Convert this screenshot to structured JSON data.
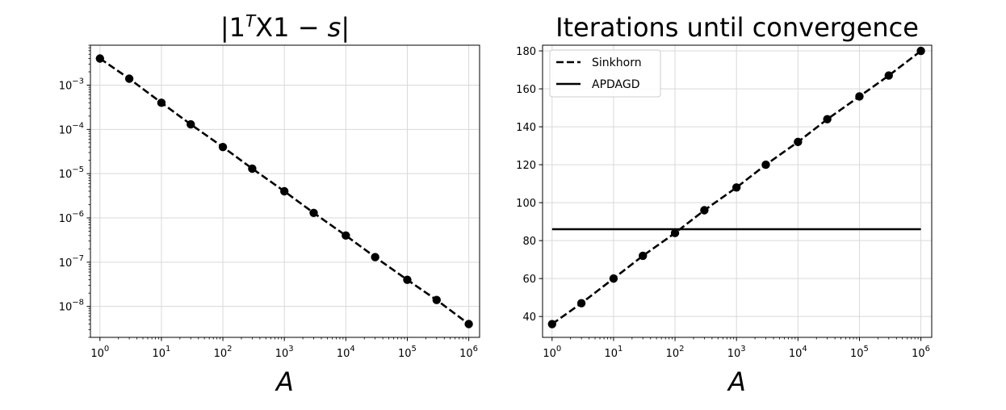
{
  "chart_data": [
    {
      "type": "line",
      "title_parts": [
        "|1",
        "T",
        "X1 − ",
        "s",
        "|"
      ],
      "xlabel": "A",
      "ylabel": "",
      "xscale": "log",
      "yscale": "log",
      "xlim": [
        0.7,
        1500000
      ],
      "ylim": [
        2e-09,
        0.008
      ],
      "grid": true,
      "x": [
        1,
        3,
        10,
        30,
        100,
        300,
        1000,
        3000,
        10000,
        30000,
        100000,
        300000,
        1000000
      ],
      "series": [
        {
          "style": "dashed",
          "marker": "circle",
          "values": [
            0.004,
            0.0014,
            0.0004,
            0.00013,
            4e-05,
            1.3e-05,
            4e-06,
            1.3e-06,
            4e-07,
            1.3e-07,
            4e-08,
            1.4e-08,
            4e-09
          ]
        }
      ],
      "xticks": [
        1,
        10,
        100,
        1000,
        10000,
        100000,
        1000000
      ],
      "xtick_labels": [
        [
          "10",
          "0"
        ],
        [
          "10",
          "1"
        ],
        [
          "10",
          "2"
        ],
        [
          "10",
          "3"
        ],
        [
          "10",
          "4"
        ],
        [
          "10",
          "5"
        ],
        [
          "10",
          "6"
        ]
      ],
      "yticks": [
        0.001,
        0.0001,
        1e-05,
        1e-06,
        1e-07,
        1e-08
      ],
      "ytick_labels": [
        [
          "10",
          "−3"
        ],
        [
          "10",
          "−4"
        ],
        [
          "10",
          "−5"
        ],
        [
          "10",
          "−6"
        ],
        [
          "10",
          "−7"
        ],
        [
          "10",
          "−8"
        ]
      ]
    },
    {
      "type": "line",
      "title": "Iterations until convergence",
      "xlabel": "A",
      "ylabel": "",
      "xscale": "log",
      "yscale": "linear",
      "xlim": [
        0.7,
        1500000
      ],
      "ylim": [
        29,
        183
      ],
      "grid": true,
      "legend": "top-left",
      "x": [
        1,
        3,
        10,
        30,
        100,
        300,
        1000,
        3000,
        10000,
        30000,
        100000,
        300000,
        1000000
      ],
      "series": [
        {
          "name": "Sinkhorn",
          "style": "dashed",
          "marker": "circle",
          "values": [
            36,
            47,
            60,
            72,
            84,
            96,
            108,
            120,
            132,
            144,
            156,
            167,
            180
          ]
        },
        {
          "name": "APDAGD",
          "style": "solid",
          "marker": "none",
          "x": [
            1,
            1000000
          ],
          "values": [
            86,
            86
          ]
        }
      ],
      "xticks": [
        1,
        10,
        100,
        1000,
        10000,
        100000,
        1000000
      ],
      "xtick_labels": [
        [
          "10",
          "0"
        ],
        [
          "10",
          "1"
        ],
        [
          "10",
          "2"
        ],
        [
          "10",
          "3"
        ],
        [
          "10",
          "4"
        ],
        [
          "10",
          "5"
        ],
        [
          "10",
          "6"
        ]
      ],
      "yticks": [
        40,
        60,
        80,
        100,
        120,
        140,
        160,
        180
      ],
      "ytick_labels": [
        [
          "40",
          ""
        ],
        [
          "60",
          ""
        ],
        [
          "80",
          ""
        ],
        [
          "100",
          ""
        ],
        [
          "120",
          ""
        ],
        [
          "140",
          ""
        ],
        [
          "160",
          ""
        ],
        [
          "180",
          ""
        ]
      ]
    }
  ]
}
